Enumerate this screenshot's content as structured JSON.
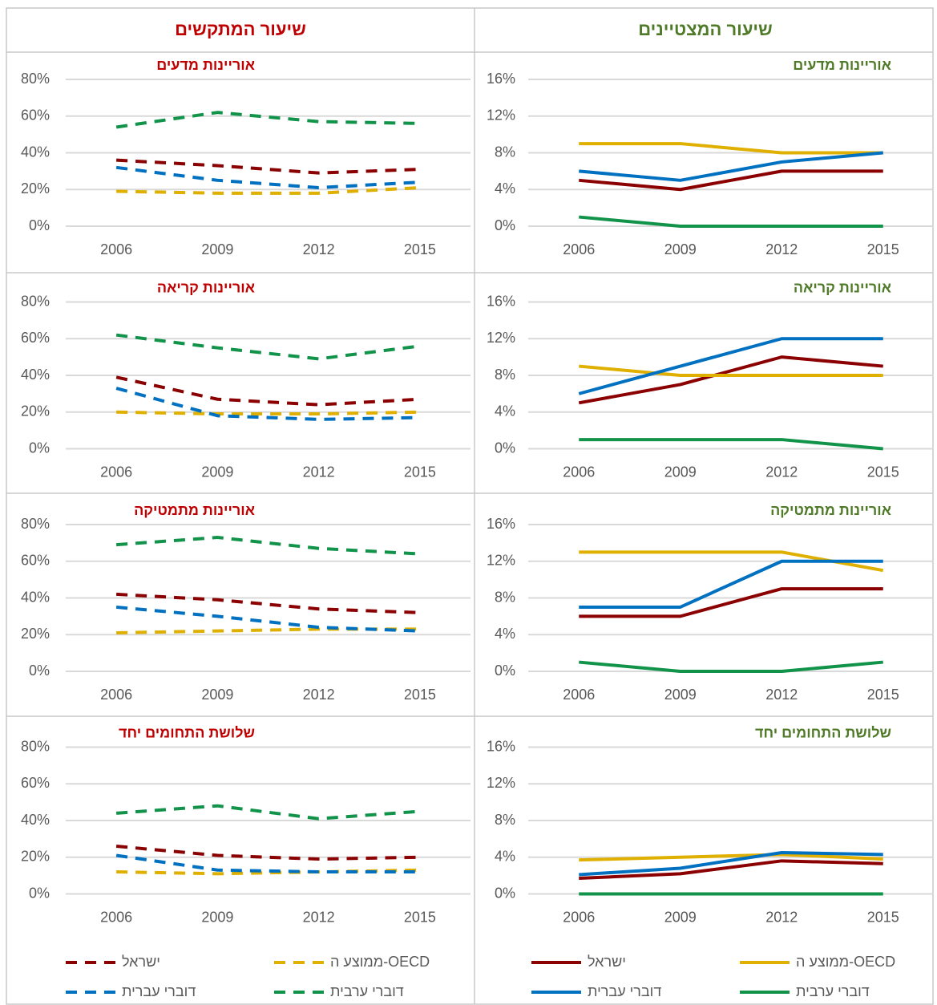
{
  "headers": [
    "שיעור המתקשים",
    "שיעור המצטיינים"
  ],
  "chart_data": [
    {
      "type": "line",
      "title": "אוריינות מדעים",
      "title_color": "#c00000",
      "dashed": true,
      "categories": [
        "2006",
        "2009",
        "2012",
        "2015"
      ],
      "ylim": [
        0,
        80
      ],
      "yticks": [
        {
          "value": 0,
          "label": "0%"
        },
        {
          "value": 20,
          "label": "20%"
        },
        {
          "value": 40,
          "label": "40%"
        },
        {
          "value": 60,
          "label": "60%"
        },
        {
          "value": 80,
          "label": "80%"
        }
      ],
      "grid": true,
      "series": [
        {
          "color": "#8b0000",
          "values": [
            36,
            33,
            29,
            31
          ]
        },
        {
          "color": "#e0b000",
          "values": [
            19,
            18,
            18,
            21
          ]
        },
        {
          "color": "#0070c0",
          "values": [
            32,
            25,
            21,
            24
          ]
        },
        {
          "color": "#12934a",
          "values": [
            54,
            62,
            57,
            56
          ]
        }
      ]
    },
    {
      "type": "line",
      "title": "אוריינות מדעים",
      "title_color": "#4f7a28",
      "dashed": false,
      "categories": [
        "2006",
        "2009",
        "2012",
        "2015"
      ],
      "ylim": [
        0,
        16
      ],
      "yticks": [
        {
          "value": 0,
          "label": "0%"
        },
        {
          "value": 4,
          "label": "4%"
        },
        {
          "value": 8,
          "label": "8%"
        },
        {
          "value": 12,
          "label": "12%"
        },
        {
          "value": 16,
          "label": "16%"
        }
      ],
      "grid": true,
      "series": [
        {
          "color": "#8b0000",
          "values": [
            5,
            4,
            6,
            6
          ]
        },
        {
          "color": "#e0b000",
          "values": [
            9,
            9,
            8,
            8
          ]
        },
        {
          "color": "#0070c0",
          "values": [
            6,
            5,
            7,
            8
          ]
        },
        {
          "color": "#12934a",
          "values": [
            1,
            0,
            0,
            0
          ]
        }
      ]
    },
    {
      "type": "line",
      "title": "אוריינות קריאה",
      "title_color": "#c00000",
      "dashed": true,
      "categories": [
        "2006",
        "2009",
        "2012",
        "2015"
      ],
      "ylim": [
        0,
        80
      ],
      "yticks": [
        {
          "value": 0,
          "label": "0%"
        },
        {
          "value": 20,
          "label": "20%"
        },
        {
          "value": 40,
          "label": "40%"
        },
        {
          "value": 60,
          "label": "60%"
        },
        {
          "value": 80,
          "label": "80%"
        }
      ],
      "grid": true,
      "series": [
        {
          "color": "#8b0000",
          "values": [
            39,
            27,
            24,
            27
          ]
        },
        {
          "color": "#e0b000",
          "values": [
            20,
            19,
            19,
            20
          ]
        },
        {
          "color": "#0070c0",
          "values": [
            33,
            18,
            16,
            17
          ]
        },
        {
          "color": "#12934a",
          "values": [
            62,
            55,
            49,
            56
          ]
        }
      ]
    },
    {
      "type": "line",
      "title": "אוריינות קריאה",
      "title_color": "#4f7a28",
      "dashed": false,
      "categories": [
        "2006",
        "2009",
        "2012",
        "2015"
      ],
      "ylim": [
        0,
        16
      ],
      "yticks": [
        {
          "value": 0,
          "label": "0%"
        },
        {
          "value": 4,
          "label": "4%"
        },
        {
          "value": 8,
          "label": "8%"
        },
        {
          "value": 12,
          "label": "12%"
        },
        {
          "value": 16,
          "label": "16%"
        }
      ],
      "grid": true,
      "series": [
        {
          "color": "#8b0000",
          "values": [
            5,
            7,
            10,
            9
          ]
        },
        {
          "color": "#e0b000",
          "values": [
            9,
            8,
            8,
            8
          ]
        },
        {
          "color": "#0070c0",
          "values": [
            6,
            9,
            12,
            12
          ]
        },
        {
          "color": "#12934a",
          "values": [
            1,
            1,
            1,
            0
          ]
        }
      ]
    },
    {
      "type": "line",
      "title": "אוריינות מתמטיקה",
      "title_color": "#c00000",
      "dashed": true,
      "categories": [
        "2006",
        "2009",
        "2012",
        "2015"
      ],
      "ylim": [
        0,
        80
      ],
      "yticks": [
        {
          "value": 0,
          "label": "0%"
        },
        {
          "value": 20,
          "label": "20%"
        },
        {
          "value": 40,
          "label": "40%"
        },
        {
          "value": 60,
          "label": "60%"
        },
        {
          "value": 80,
          "label": "80%"
        }
      ],
      "grid": true,
      "series": [
        {
          "color": "#8b0000",
          "values": [
            42,
            39,
            34,
            32
          ]
        },
        {
          "color": "#e0b000",
          "values": [
            21,
            22,
            23,
            23
          ]
        },
        {
          "color": "#0070c0",
          "values": [
            35,
            30,
            24,
            22
          ]
        },
        {
          "color": "#12934a",
          "values": [
            69,
            73,
            67,
            64
          ]
        }
      ]
    },
    {
      "type": "line",
      "title": "אוריינות מתמטיקה",
      "title_color": "#4f7a28",
      "dashed": false,
      "categories": [
        "2006",
        "2009",
        "2012",
        "2015"
      ],
      "ylim": [
        0,
        16
      ],
      "yticks": [
        {
          "value": 0,
          "label": "0%"
        },
        {
          "value": 4,
          "label": "4%"
        },
        {
          "value": 8,
          "label": "8%"
        },
        {
          "value": 12,
          "label": "12%"
        },
        {
          "value": 16,
          "label": "16%"
        }
      ],
      "grid": true,
      "series": [
        {
          "color": "#8b0000",
          "values": [
            6,
            6,
            9,
            9
          ]
        },
        {
          "color": "#e0b000",
          "values": [
            13,
            13,
            13,
            11
          ]
        },
        {
          "color": "#0070c0",
          "values": [
            7,
            7,
            12,
            12
          ]
        },
        {
          "color": "#12934a",
          "values": [
            1,
            0,
            0,
            1
          ]
        }
      ]
    },
    {
      "type": "line",
      "title": "שלושת התחומים יחד",
      "title_color": "#c00000",
      "dashed": true,
      "categories": [
        "2006",
        "2009",
        "2012",
        "2015"
      ],
      "ylim": [
        0,
        80
      ],
      "yticks": [
        {
          "value": 0,
          "label": "0%"
        },
        {
          "value": 20,
          "label": "20%"
        },
        {
          "value": 40,
          "label": "40%"
        },
        {
          "value": 60,
          "label": "60%"
        },
        {
          "value": 80,
          "label": "80%"
        }
      ],
      "grid": true,
      "series": [
        {
          "name": "ישראל",
          "color": "#8b0000",
          "values": [
            26,
            21,
            19,
            20
          ]
        },
        {
          "name": "ממוצע ה-OECD",
          "color": "#e0b000",
          "values": [
            12,
            11,
            12,
            13
          ]
        },
        {
          "name": "דוברי עברית",
          "color": "#0070c0",
          "values": [
            21,
            13,
            12,
            12
          ]
        },
        {
          "name": "דוברי ערבית",
          "color": "#12934a",
          "values": [
            44,
            48,
            41,
            45
          ]
        }
      ]
    },
    {
      "type": "line",
      "title": "שלושת התחומים יחד",
      "title_color": "#4f7a28",
      "dashed": false,
      "categories": [
        "2006",
        "2009",
        "2012",
        "2015"
      ],
      "ylim": [
        0,
        16
      ],
      "yticks": [
        {
          "value": 0,
          "label": "0%"
        },
        {
          "value": 4,
          "label": "4%"
        },
        {
          "value": 8,
          "label": "8%"
        },
        {
          "value": 12,
          "label": "12%"
        },
        {
          "value": 16,
          "label": "16%"
        }
      ],
      "grid": true,
      "series": [
        {
          "name": "ישראל",
          "color": "#8b0000",
          "values": [
            1.7,
            2.2,
            3.6,
            3.3
          ]
        },
        {
          "name": "ממוצע ה-OECD",
          "color": "#e0b000",
          "values": [
            3.7,
            4,
            4.3,
            3.8
          ]
        },
        {
          "name": "דוברי עברית",
          "color": "#0070c0",
          "values": [
            2.1,
            2.8,
            4.5,
            4.3
          ]
        },
        {
          "name": "דוברי ערבית",
          "color": "#12934a",
          "values": [
            0,
            0,
            0,
            0
          ]
        }
      ]
    }
  ]
}
